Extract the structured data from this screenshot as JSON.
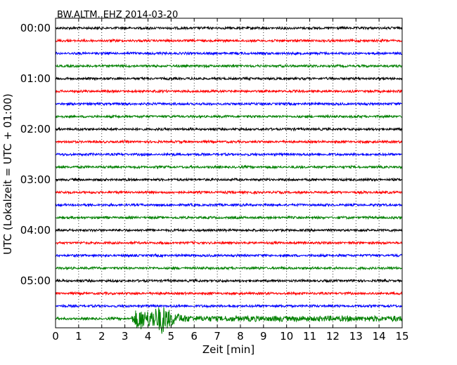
{
  "chart_data": {
    "type": "line",
    "title": "BW.ALTM..EHZ 2014-03-20",
    "xlabel": "Zeit  [min]",
    "ylabel": "UTC (Lokalzeit = UTC + 01:00)",
    "xlim": [
      0,
      15
    ],
    "x_ticks": [
      "0",
      "1",
      "2",
      "3",
      "4",
      "5",
      "6",
      "7",
      "8",
      "9",
      "10",
      "11",
      "12",
      "13",
      "14",
      "15"
    ],
    "y_ticks": [
      "00:00",
      "01:00",
      "02:00",
      "03:00",
      "04:00",
      "05:00"
    ],
    "grid": "vertical dotted",
    "series_colors": [
      "#000000",
      "#ff0000",
      "#0000ff",
      "#008000"
    ],
    "traces": [
      {
        "start": "00:00",
        "color": "#000000"
      },
      {
        "start": "00:15",
        "color": "#ff0000"
      },
      {
        "start": "00:30",
        "color": "#0000ff"
      },
      {
        "start": "00:45",
        "color": "#008000"
      },
      {
        "start": "01:00",
        "color": "#000000"
      },
      {
        "start": "01:15",
        "color": "#ff0000"
      },
      {
        "start": "01:30",
        "color": "#0000ff"
      },
      {
        "start": "01:45",
        "color": "#008000"
      },
      {
        "start": "02:00",
        "color": "#000000"
      },
      {
        "start": "02:15",
        "color": "#ff0000"
      },
      {
        "start": "02:30",
        "color": "#0000ff"
      },
      {
        "start": "02:45",
        "color": "#008000"
      },
      {
        "start": "03:00",
        "color": "#000000"
      },
      {
        "start": "03:15",
        "color": "#ff0000"
      },
      {
        "start": "03:30",
        "color": "#0000ff"
      },
      {
        "start": "03:45",
        "color": "#008000"
      },
      {
        "start": "04:00",
        "color": "#000000"
      },
      {
        "start": "04:15",
        "color": "#ff0000"
      },
      {
        "start": "04:30",
        "color": "#0000ff"
      },
      {
        "start": "04:45",
        "color": "#008000"
      },
      {
        "start": "05:00",
        "color": "#000000"
      },
      {
        "start": "05:15",
        "color": "#ff0000"
      },
      {
        "start": "05:30",
        "color": "#0000ff"
      },
      {
        "start": "05:45",
        "color": "#008000",
        "event": {
          "start_min": 3.3,
          "peak_min": 4.6,
          "end_min": 6.3
        }
      }
    ]
  }
}
